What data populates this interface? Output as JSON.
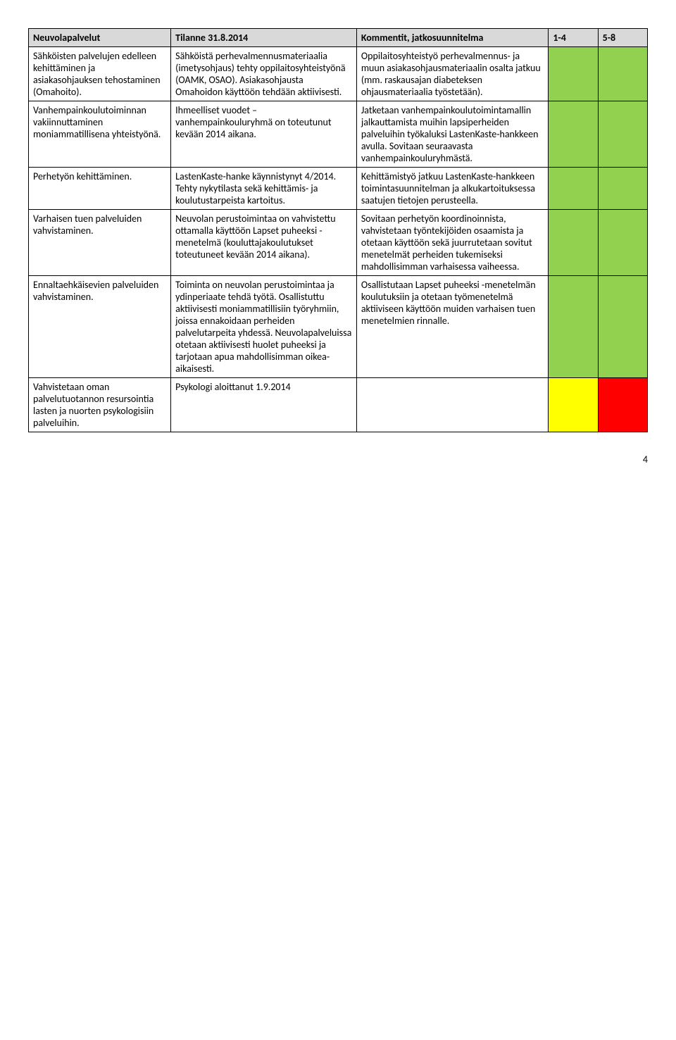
{
  "header": {
    "col1": "Neuvolapalvelut",
    "col2": "Tilanne 31.8.2014",
    "col3": "Kommentit, jatkosuunnitelma",
    "col4": "1-4",
    "col5": "5-8"
  },
  "rows": [
    {
      "c1": "Sähköisten palvelujen edelleen kehittäminen ja asiakasohjauksen tehostaminen (Omahoito).",
      "c2": "Sähköistä perhevalmennusmateriaalia (imetysohjaus) tehty oppilaitosyhteistyönä (OAMK, OSAO). Asiakasohjausta Omahoidon käyttöön tehdään aktiivisesti.",
      "c3": "Oppilaitosyhteistyö perhevalmennus- ja muun asiakasohjausmateriaalin osalta jatkuu (mm. raskausajan diabeteksen ohjausmateriaalia työstetään).",
      "c4_class": "green",
      "c5_class": "green"
    },
    {
      "c1": "Vanhempainkoulutoiminnan vakiinnuttaminen moniammatillisena yhteistyönä.",
      "c2": "Ihmeelliset vuodet –vanhempainkouluryhmä on toteutunut kevään 2014 aikana.",
      "c3": "Jatketaan vanhempainkoulutoimintamallin jalkauttamista muihin lapsiperheiden palveluihin työkaluksi LastenKaste-hankkeen avulla. Sovitaan seuraavasta vanhempainkouluryhmästä.",
      "c4_class": "green",
      "c5_class": "green"
    },
    {
      "c1": "Perhetyön kehittäminen.",
      "c2": "LastenKaste-hanke käynnistynyt 4/2014. Tehty nykytilasta sekä kehittämis- ja koulutustarpeista kartoitus.",
      "c3": "Kehittämistyö jatkuu LastenKaste-hankkeen toimintasuunnitelman ja alkukartoituksessa saatujen tietojen perusteella.",
      "c4_class": "green",
      "c5_class": "green"
    },
    {
      "c1": "Varhaisen tuen palveluiden vahvistaminen.",
      "c2": "Neuvolan perustoimintaa on vahvistettu ottamalla käyttöön Lapset puheeksi -menetelmä (kouluttajakoulutukset toteutuneet kevään 2014 aikana).",
      "c3": "Sovitaan perhetyön koordinoinnista, vahvistetaan työntekijöiden osaamista ja otetaan käyttöön sekä juurrutetaan sovitut menetelmät perheiden tukemiseksi mahdollisimman varhaisessa vaiheessa.",
      "c4_class": "green",
      "c5_class": "green"
    },
    {
      "c1": "Ennaltaehkäisevien palveluiden vahvistaminen.",
      "c2": "Toiminta on neuvolan perustoimintaa ja ydinperiaate tehdä työtä. Osallistuttu aktiivisesti moniammatillisiin työryhmiin, joissa ennakoidaan perheiden palvelutarpeita yhdessä. Neuvolapalveluissa otetaan aktiivisesti huolet puheeksi ja tarjotaan apua mahdollisimman oikea-aikaisesti.",
      "c3": "Osallistutaan Lapset puheeksi -menetelmän koulutuksiin ja otetaan työmenetelmä aktiiviseen käyttöön muiden varhaisen tuen menetelmien rinnalle.",
      "c4_class": "green",
      "c5_class": "green"
    },
    {
      "c1": "Vahvistetaan oman palvelutuotannon resursointia lasten ja nuorten psykologisiin palveluihin.",
      "c2": "Psykologi aloittanut 1.9.2014",
      "c3": "",
      "c4_class": "yellow",
      "c5_class": "red"
    }
  ],
  "pageNumber": "4"
}
